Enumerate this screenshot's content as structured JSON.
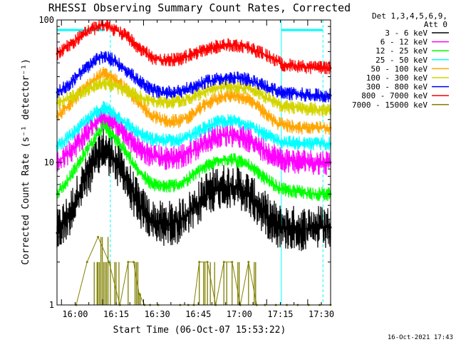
{
  "chart_data": {
    "type": "line",
    "title": "RHESSI Observing Summary Count Rates, Corrected",
    "xlabel": "Start Time (06-Oct-07 15:53:22)",
    "ylabel": "Corrected Count Rate (s⁻¹ detector⁻¹)",
    "yscale": "log",
    "ylim": [
      1,
      100
    ],
    "xlim_minutes_after_start": [
      0,
      100
    ],
    "y_ticks": [
      "1",
      "10",
      "100"
    ],
    "x_ticks": [
      "16:00",
      "16:15",
      "16:30",
      "16:45",
      "17:00",
      "17:15",
      "17:30"
    ],
    "x_tick_minutes": [
      6.63,
      21.63,
      36.63,
      51.63,
      66.63,
      81.63,
      96.63
    ],
    "legend_header": [
      "Det 1,3,4,5,6,9,",
      "Att 0"
    ],
    "legend_position": "right",
    "footer_date": "16-Oct-2021 17:43",
    "markers": {
      "vertical_solid_minutes": [
        0,
        82
      ],
      "vertical_dashed_minutes": [
        19.5,
        97.2
      ],
      "horizontal_bar_spans": [
        [
          0,
          17.5
        ],
        [
          82,
          97.2
        ]
      ],
      "horizontal_bar_value": 85,
      "color": "#00ffff"
    },
    "series": [
      {
        "name": "3 - 6 keV",
        "color": "#000000",
        "x": [
          0,
          5,
          10,
          15,
          17,
          20,
          25,
          30,
          35,
          40,
          45,
          50,
          55,
          60,
          65,
          70,
          75,
          80,
          82,
          85,
          90,
          95,
          100
        ],
        "values": [
          3.2,
          4.5,
          7.5,
          11,
          12.5,
          11,
          8,
          5,
          3.8,
          3.7,
          3.9,
          4.7,
          6.2,
          6.8,
          6.8,
          6,
          4.6,
          3.7,
          3.5,
          3.5,
          3.4,
          3.5,
          3.5
        ]
      },
      {
        "name": "6 - 12 keV",
        "color": "#ff00ff",
        "x": [
          0,
          5,
          10,
          15,
          17,
          20,
          25,
          30,
          35,
          40,
          45,
          50,
          55,
          60,
          65,
          70,
          75,
          80,
          82,
          85,
          90,
          95,
          100
        ],
        "values": [
          10,
          12,
          15.5,
          19.5,
          21,
          19.5,
          15.5,
          12.5,
          11,
          10.8,
          11,
          12.2,
          14.2,
          15.5,
          15.5,
          14.5,
          12.5,
          11,
          10.5,
          10.3,
          10.2,
          10,
          10
        ]
      },
      {
        "name": "12 - 25 keV",
        "color": "#00ff00",
        "x": [
          0,
          5,
          10,
          15,
          17,
          20,
          25,
          30,
          35,
          40,
          45,
          50,
          55,
          60,
          65,
          70,
          75,
          80,
          82,
          85,
          90,
          95,
          100
        ],
        "values": [
          6,
          8,
          11.5,
          16,
          18,
          16,
          12,
          8.5,
          7,
          6.8,
          7,
          8.2,
          9.5,
          10.5,
          10.5,
          9.5,
          8,
          6.8,
          6.5,
          6.3,
          6.2,
          6,
          6
        ]
      },
      {
        "name": "25 - 50 keV",
        "color": "#00ffff",
        "x": [
          0,
          5,
          10,
          15,
          17,
          20,
          25,
          30,
          35,
          40,
          45,
          50,
          55,
          60,
          65,
          70,
          75,
          80,
          82,
          85,
          90,
          95,
          100
        ],
        "values": [
          13,
          15.5,
          19,
          23,
          24.5,
          23,
          19,
          16,
          14.5,
          14.3,
          14.5,
          15.8,
          18,
          19.5,
          19.5,
          18.5,
          16,
          14.5,
          14,
          13.8,
          13.6,
          13.5,
          13.5
        ]
      },
      {
        "name": "50 - 100 keV",
        "color": "#ffa500",
        "x": [
          0,
          5,
          10,
          15,
          17,
          20,
          25,
          30,
          35,
          40,
          45,
          50,
          55,
          60,
          65,
          70,
          75,
          80,
          82,
          85,
          90,
          95,
          100
        ],
        "values": [
          21,
          26,
          33,
          40,
          42,
          40,
          33,
          26,
          21,
          19.5,
          19.5,
          22,
          26,
          29,
          29.5,
          28,
          23,
          19,
          18.5,
          18,
          17.5,
          17.5,
          17.5
        ]
      },
      {
        "name": "100 - 300 keV",
        "color": "#d4d400",
        "x": [
          0,
          5,
          10,
          15,
          17,
          20,
          25,
          30,
          35,
          40,
          45,
          50,
          55,
          60,
          65,
          70,
          75,
          80,
          82,
          85,
          90,
          95,
          100
        ],
        "values": [
          26,
          28.5,
          32,
          35,
          36,
          35,
          32,
          29,
          27,
          26.5,
          27,
          29,
          32,
          34,
          34,
          33,
          29.5,
          26.5,
          25,
          24.5,
          24,
          23.5,
          23.5
        ]
      },
      {
        "name": "300 - 800 keV",
        "color": "#0000ff",
        "x": [
          0,
          5,
          10,
          15,
          17,
          20,
          25,
          30,
          35,
          40,
          45,
          50,
          55,
          60,
          65,
          70,
          75,
          80,
          82,
          85,
          90,
          95,
          100
        ],
        "values": [
          31,
          36,
          45,
          53,
          55,
          53,
          45,
          37,
          32,
          31,
          31.5,
          34,
          37,
          39,
          39,
          38,
          35,
          32,
          31,
          30.5,
          30,
          29.5,
          29.5
        ]
      },
      {
        "name": "800 - 7000 keV",
        "color": "#ff0000",
        "x": [
          0,
          5,
          10,
          15,
          17,
          20,
          25,
          30,
          35,
          40,
          45,
          50,
          55,
          60,
          65,
          70,
          75,
          80,
          82,
          85,
          90,
          95,
          100
        ],
        "values": [
          58,
          68,
          80,
          90,
          92,
          88,
          78,
          64,
          54,
          52,
          53,
          58,
          63,
          66,
          67,
          64,
          58,
          52,
          49,
          48,
          47,
          46,
          46
        ]
      },
      {
        "name": "7000 - 15000 keV",
        "color": "#808000",
        "x": [
          7,
          11,
          15,
          19,
          23,
          26,
          28,
          30,
          32,
          34,
          37,
          45,
          48,
          50,
          52,
          55,
          58,
          61,
          64,
          67,
          70,
          73,
          76,
          80,
          84,
          88,
          92,
          96,
          100
        ],
        "values": [
          1,
          2,
          3,
          2,
          1,
          2,
          2,
          1.2,
          1,
          1,
          1,
          1,
          1,
          1,
          2,
          2,
          1,
          2,
          2,
          1,
          2,
          1,
          1,
          1,
          1,
          1,
          1,
          1,
          1
        ]
      }
    ]
  }
}
